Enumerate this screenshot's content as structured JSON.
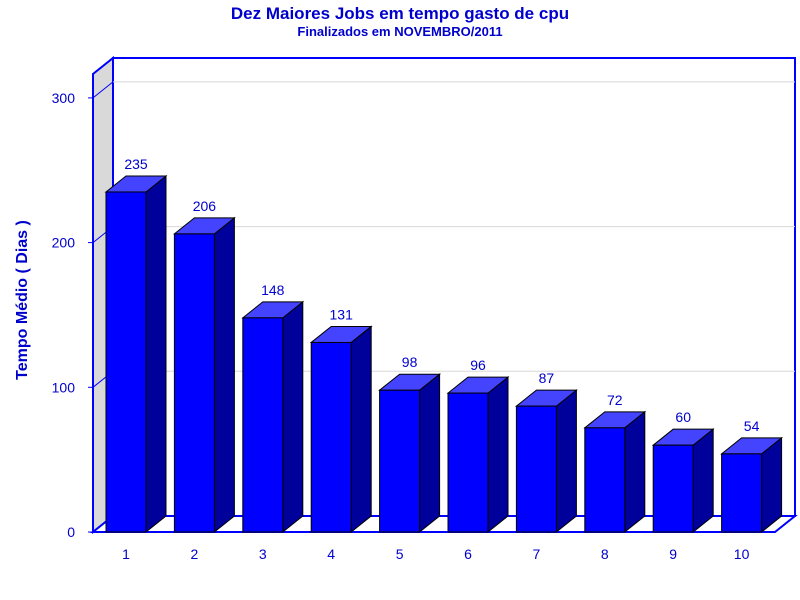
{
  "chart_data": {
    "type": "bar",
    "title": "Dez Maiores Jobs em tempo gasto de cpu",
    "subtitle": "Finalizados em NOVEMBRO/2011",
    "xlabel": "",
    "ylabel": "Tempo Médio ( Dias )",
    "categories": [
      "1",
      "2",
      "3",
      "4",
      "5",
      "6",
      "7",
      "8",
      "9",
      "10"
    ],
    "values": [
      235,
      206,
      148,
      131,
      98,
      96,
      87,
      72,
      60,
      54
    ],
    "ylim": [
      0,
      300
    ],
    "yticks": [
      "0",
      "100",
      "200",
      "300"
    ],
    "grid": true,
    "style": "3d",
    "colors": {
      "text": "#0000cc",
      "frame": "#0000ff",
      "bar_front": "#0000ff",
      "bar_top": "#4444ff",
      "bar_side": "#00009b",
      "left_wall": "#d9d9d9",
      "gridline": "#d8d8d8"
    }
  }
}
